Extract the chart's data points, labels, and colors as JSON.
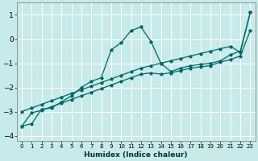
{
  "xlabel": "Humidex (Indice chaleur)",
  "bg_color": "#c8eaea",
  "grid_color": "#ffffff",
  "line_color": "#006666",
  "xlim": [
    -0.5,
    23.5
  ],
  "ylim": [
    -4.2,
    1.5
  ],
  "xticks": [
    0,
    1,
    2,
    3,
    4,
    5,
    6,
    7,
    8,
    9,
    10,
    11,
    12,
    13,
    14,
    15,
    16,
    17,
    18,
    19,
    20,
    21,
    22,
    23
  ],
  "yticks": [
    -4,
    -3,
    -2,
    -1,
    0,
    1
  ],
  "line1_x": [
    0,
    1,
    2,
    3,
    4,
    5,
    6,
    7,
    8,
    9,
    10,
    11,
    12,
    13,
    14,
    15,
    16,
    17,
    18,
    19,
    20,
    21,
    22,
    23
  ],
  "line1_y": [
    -3.6,
    -3.5,
    -2.9,
    -2.85,
    -2.6,
    -2.35,
    -2.0,
    -1.75,
    -1.6,
    -0.45,
    -0.15,
    0.35,
    0.5,
    -0.1,
    -1.0,
    -1.35,
    -1.2,
    -1.1,
    -1.05,
    -1.0,
    -0.9,
    -0.65,
    -0.5,
    1.1
  ],
  "line2_x": [
    0,
    1,
    2,
    3,
    4,
    5,
    6,
    7,
    8,
    9,
    10,
    11,
    12,
    13,
    14,
    15,
    16,
    17,
    18,
    19,
    20,
    21,
    22,
    23
  ],
  "line2_y": [
    -3.0,
    -2.85,
    -2.7,
    -2.55,
    -2.4,
    -2.25,
    -2.1,
    -1.95,
    -1.8,
    -1.65,
    -1.5,
    -1.35,
    -1.2,
    -1.1,
    -1.0,
    -0.9,
    -0.8,
    -0.7,
    -0.6,
    -0.5,
    -0.4,
    -0.3,
    -0.55,
    1.1
  ],
  "line3_x": [
    0,
    1,
    2,
    3,
    4,
    5,
    6,
    7,
    8,
    9,
    10,
    11,
    12,
    13,
    14,
    15,
    16,
    17,
    18,
    19,
    20,
    21,
    22,
    23
  ],
  "line3_y": [
    -3.6,
    -3.05,
    -2.95,
    -2.8,
    -2.65,
    -2.5,
    -2.35,
    -2.2,
    -2.05,
    -1.9,
    -1.75,
    -1.6,
    -1.45,
    -1.4,
    -1.45,
    -1.4,
    -1.3,
    -1.2,
    -1.15,
    -1.1,
    -0.95,
    -0.85,
    -0.7,
    0.35
  ]
}
